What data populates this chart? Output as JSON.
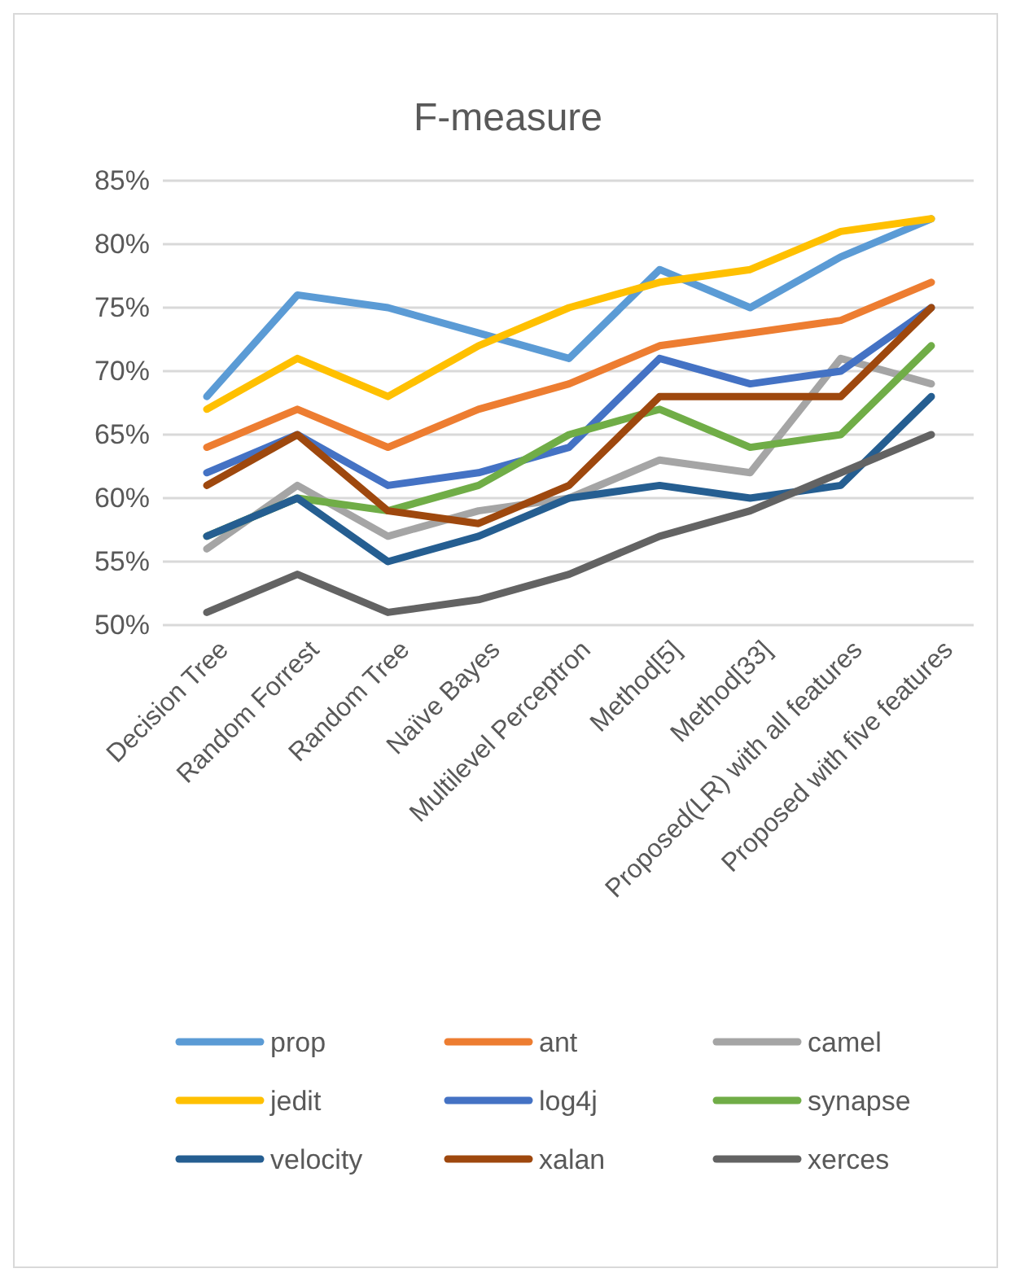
{
  "chart_data": {
    "type": "line",
    "title": "F-measure",
    "categories": [
      "Decision Tree",
      "Random Forrest",
      "Random Tree",
      "Naïve Bayes",
      "Multilevel Perceptron",
      "Method[5]",
      "Method[33]",
      "Proposed(LR) with all features",
      "Proposed with five features"
    ],
    "series": [
      {
        "name": "prop",
        "color": "#5b9bd5",
        "values": [
          68,
          76,
          75,
          73,
          71,
          78,
          75,
          79,
          82
        ]
      },
      {
        "name": "ant",
        "color": "#ed7d31",
        "values": [
          64,
          67,
          64,
          67,
          69,
          72,
          73,
          74,
          77
        ]
      },
      {
        "name": "camel",
        "color": "#a5a5a5",
        "values": [
          56,
          61,
          57,
          59,
          60,
          63,
          62,
          71,
          69
        ]
      },
      {
        "name": "jedit",
        "color": "#ffc000",
        "values": [
          67,
          71,
          68,
          72,
          75,
          77,
          78,
          81,
          82
        ]
      },
      {
        "name": "log4j",
        "color": "#4472c4",
        "values": [
          62,
          65,
          61,
          62,
          64,
          71,
          69,
          70,
          75
        ]
      },
      {
        "name": "synapse",
        "color": "#70ad47",
        "values": [
          57,
          60,
          59,
          61,
          65,
          67,
          64,
          65,
          72
        ]
      },
      {
        "name": "velocity",
        "color": "#255e91",
        "values": [
          57,
          60,
          55,
          57,
          60,
          61,
          60,
          61,
          68
        ]
      },
      {
        "name": "xalan",
        "color": "#9e480e",
        "values": [
          61,
          65,
          59,
          58,
          61,
          68,
          68,
          68,
          75
        ]
      },
      {
        "name": "xerces",
        "color": "#636363",
        "values": [
          51,
          54,
          51,
          52,
          54,
          57,
          59,
          62,
          65
        ]
      }
    ],
    "ylim": [
      50,
      85
    ],
    "yticks": [
      {
        "value": 50,
        "label": "50%"
      },
      {
        "value": 55,
        "label": "55%"
      },
      {
        "value": 60,
        "label": "60%"
      },
      {
        "value": 65,
        "label": "65%"
      },
      {
        "value": 70,
        "label": "70%"
      },
      {
        "value": 75,
        "label": "75%"
      },
      {
        "value": 80,
        "label": "80%"
      },
      {
        "value": 85,
        "label": "85%"
      }
    ],
    "grid": "y",
    "legend": "bottom",
    "marker": "none",
    "line_style": "solid"
  }
}
